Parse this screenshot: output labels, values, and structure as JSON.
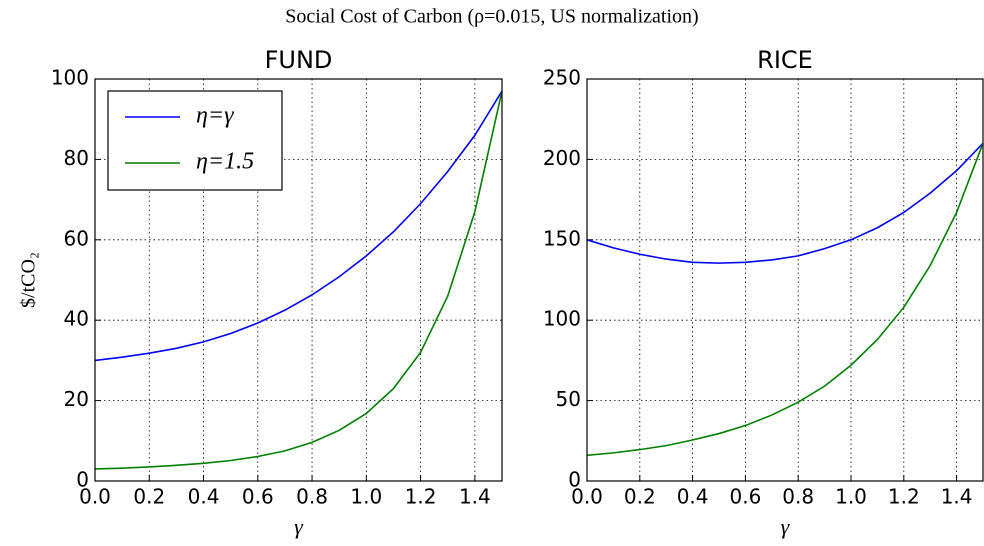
{
  "title": "Social Cost of Carbon (ρ=0.015, US normalization)",
  "chart_data": [
    {
      "type": "line",
      "title": "FUND",
      "ylabel": "$/tCO₂",
      "xlabel": "γ",
      "x": [
        0,
        0.1,
        0.2,
        0.3,
        0.4,
        0.5,
        0.6,
        0.7,
        0.8,
        0.9,
        1.0,
        1.1,
        1.2,
        1.3,
        1.4,
        1.5
      ],
      "series": [
        {
          "name": "η=γ",
          "color": "#0000ff",
          "values": [
            30,
            30.8,
            31.8,
            33,
            34.6,
            36.7,
            39.3,
            42.5,
            46.3,
            50.8,
            56,
            62,
            69,
            77,
            86,
            97
          ]
        },
        {
          "name": "η=1.5",
          "color": "#008000",
          "values": [
            3,
            3.2,
            3.5,
            3.9,
            4.4,
            5.1,
            6.1,
            7.5,
            9.6,
            12.6,
            16.8,
            23,
            32,
            46,
            67,
            97
          ]
        }
      ],
      "xlim": [
        0,
        1.5
      ],
      "ylim": [
        0,
        100
      ],
      "xticks": [
        {
          "value": 0,
          "label": "0.0"
        },
        0.2,
        0.4,
        0.6,
        0.8,
        {
          "value": 1,
          "label": "1.0"
        },
        1.2,
        1.4
      ],
      "yticks": [
        0,
        20,
        40,
        60,
        80,
        100
      ],
      "grid": true,
      "legend": "upper left"
    },
    {
      "type": "line",
      "title": "RICE",
      "xlabel": "γ",
      "x": [
        0,
        0.1,
        0.2,
        0.3,
        0.4,
        0.5,
        0.6,
        0.7,
        0.8,
        0.9,
        1.0,
        1.1,
        1.2,
        1.3,
        1.4,
        1.5
      ],
      "series": [
        {
          "color": "#0000ff",
          "values": [
            150,
            145,
            141,
            138,
            136,
            135.5,
            136,
            137.5,
            140,
            144.5,
            150,
            157.5,
            167,
            179,
            193,
            210
          ]
        },
        {
          "color": "#008000",
          "values": [
            16,
            17.5,
            19.5,
            22,
            25.5,
            29.5,
            34.5,
            41,
            49,
            59,
            72,
            88,
            108,
            134,
            167,
            210
          ]
        }
      ],
      "xlim": [
        0,
        1.5
      ],
      "ylim": [
        0,
        250
      ],
      "xticks": [
        {
          "value": 0,
          "label": "0.0"
        },
        0.2,
        0.4,
        0.6,
        0.8,
        {
          "value": 1,
          "label": "1.0"
        },
        1.2,
        1.4
      ],
      "yticks": [
        0,
        50,
        100,
        150,
        200,
        250
      ],
      "grid": true
    }
  ]
}
